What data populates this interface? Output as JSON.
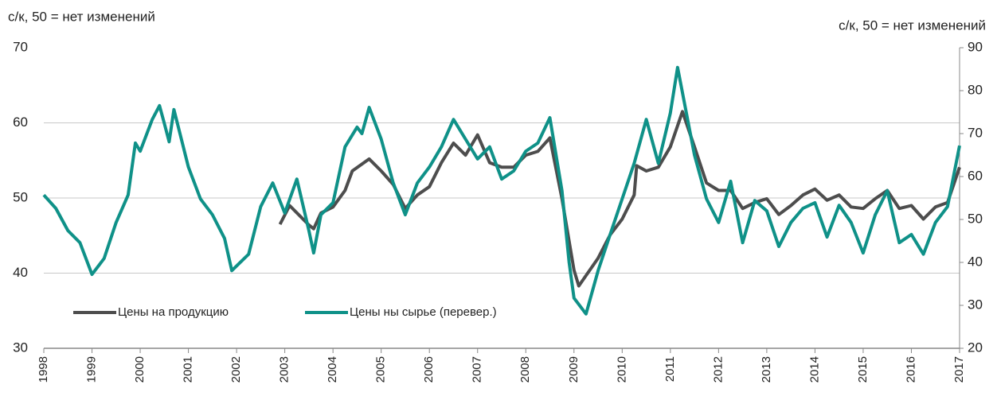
{
  "chart_data": {
    "type": "line",
    "y_label": "с/к, 50 = нет изменений",
    "y2_label": "с/к, 50 = нет изменений",
    "xlim": [
      1998,
      2017
    ],
    "xticks": [
      1998,
      1999,
      2000,
      2001,
      2002,
      2003,
      2004,
      2005,
      2006,
      2007,
      2008,
      2009,
      2010,
      2011,
      2012,
      2013,
      2014,
      2015,
      2016,
      2017
    ],
    "ylim": [
      30,
      70
    ],
    "yticks": [
      30,
      40,
      50,
      60,
      70
    ],
    "y2lim": [
      20,
      90
    ],
    "y2ticks": [
      20,
      30,
      40,
      50,
      60,
      70,
      80,
      90
    ],
    "grid": true,
    "legend": "lower left",
    "series": [
      {
        "name": "Цены на продукцию",
        "color": "#4d4d4d",
        "axis": "y",
        "x": [
          2002.9,
          2003.1,
          2003.5,
          2003.6,
          2003.75,
          2004.0,
          2004.25,
          2004.4,
          2004.75,
          2005.0,
          2005.25,
          2005.5,
          2005.75,
          2006.0,
          2006.25,
          2006.5,
          2006.75,
          2007.0,
          2007.25,
          2007.5,
          2007.75,
          2008.0,
          2008.25,
          2008.5,
          2008.75,
          2009.0,
          2009.1,
          2009.5,
          2009.75,
          2010.0,
          2010.25,
          2010.3,
          2010.5,
          2010.75,
          2011.0,
          2011.25,
          2011.5,
          2011.75,
          2012.0,
          2012.25,
          2012.5,
          2012.75,
          2013.0,
          2013.25,
          2013.5,
          2013.75,
          2014.0,
          2014.25,
          2014.5,
          2014.75,
          2015.0,
          2015.25,
          2015.5,
          2015.75,
          2016.0,
          2016.25,
          2016.5,
          2016.75,
          2017.0
        ],
        "values": [
          46.5,
          49.0,
          46.4,
          45.9,
          48.0,
          48.8,
          51.0,
          53.6,
          55.2,
          53.6,
          51.8,
          48.6,
          50.4,
          51.5,
          54.7,
          57.3,
          55.7,
          58.4,
          54.7,
          54.1,
          54.1,
          55.7,
          56.2,
          58.0,
          49.9,
          40.4,
          38.3,
          42.0,
          45.1,
          47.2,
          50.4,
          54.3,
          53.6,
          54.1,
          56.8,
          61.5,
          56.8,
          52.0,
          51.0,
          51.0,
          48.6,
          49.4,
          49.9,
          47.8,
          49.0,
          50.4,
          51.2,
          49.7,
          50.4,
          48.8,
          48.6,
          49.9,
          51.0,
          48.6,
          49.0,
          47.2,
          48.8,
          49.4,
          54.1
        ]
      },
      {
        "name": "Цены ны сырье (перевер.)",
        "color": "#0f9188",
        "axis": "y2",
        "x": [
          1998.0,
          1998.25,
          1998.5,
          1998.75,
          1999.0,
          1999.25,
          1999.5,
          1999.75,
          1999.9,
          2000.0,
          2000.25,
          2000.4,
          2000.5,
          2000.6,
          2000.7,
          2001.0,
          2001.25,
          2001.5,
          2001.75,
          2001.9,
          2002.25,
          2002.5,
          2002.75,
          2003.0,
          2003.25,
          2003.5,
          2003.6,
          2003.75,
          2004.0,
          2004.25,
          2004.5,
          2004.6,
          2004.75,
          2005.0,
          2005.25,
          2005.5,
          2005.75,
          2006.0,
          2006.25,
          2006.5,
          2006.75,
          2007.0,
          2007.25,
          2007.5,
          2007.75,
          2008.0,
          2008.25,
          2008.5,
          2008.75,
          2008.9,
          2009.0,
          2009.25,
          2009.5,
          2009.75,
          2010.0,
          2010.25,
          2010.5,
          2010.75,
          2011.0,
          2011.15,
          2011.5,
          2011.75,
          2012.0,
          2012.25,
          2012.5,
          2012.75,
          2013.0,
          2013.25,
          2013.5,
          2013.75,
          2014.0,
          2014.25,
          2014.5,
          2014.75,
          2015.0,
          2015.25,
          2015.5,
          2015.75,
          2016.0,
          2016.25,
          2016.5,
          2016.75,
          2017.0
        ],
        "values": [
          55.7,
          52.6,
          47.4,
          44.6,
          37.2,
          40.9,
          49.3,
          55.7,
          67.8,
          65.9,
          73.3,
          76.5,
          72.4,
          68.1,
          75.6,
          62.2,
          54.8,
          51.1,
          45.6,
          38.1,
          41.9,
          53.0,
          58.5,
          51.5,
          59.4,
          47.4,
          42.2,
          51.1,
          53.9,
          66.9,
          71.5,
          70.0,
          76.1,
          68.7,
          58.5,
          51.1,
          58.5,
          62.2,
          66.9,
          73.3,
          68.7,
          64.1,
          66.9,
          59.4,
          61.3,
          65.9,
          67.8,
          73.7,
          56.7,
          40.0,
          31.7,
          28.0,
          38.1,
          46.5,
          54.8,
          63.1,
          73.3,
          63.1,
          74.8,
          85.4,
          65.0,
          54.8,
          49.3,
          58.9,
          44.6,
          54.4,
          52.0,
          43.7,
          49.3,
          52.6,
          53.9,
          45.9,
          53.3,
          49.3,
          42.2,
          51.1,
          56.7,
          44.6,
          46.5,
          41.9,
          49.3,
          53.0,
          67.2
        ]
      }
    ]
  }
}
